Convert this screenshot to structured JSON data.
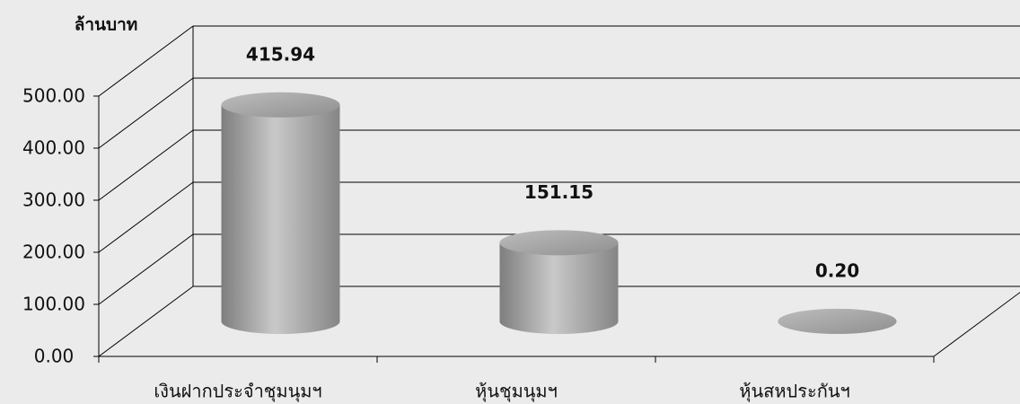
{
  "chart_data": {
    "type": "cylinder",
    "y_label": "ล้านบาท",
    "categories": [
      "เงินฝากประจำชุมนุมฯ",
      "หุ้นชุมนุมฯ",
      "หุ้นสหประกันฯ"
    ],
    "values": [
      415.94,
      151.15,
      0.2
    ],
    "value_labels": [
      "415.94",
      "151.15",
      "0.20"
    ],
    "color": "#a6a6a6",
    "ylim": [
      0,
      500
    ],
    "yticks": [
      {
        "value": 0,
        "label": "0.00"
      },
      {
        "value": 100,
        "label": "100.00"
      },
      {
        "value": 200,
        "label": "200.00"
      },
      {
        "value": 300,
        "label": "300.00"
      },
      {
        "value": 400,
        "label": "400.00"
      },
      {
        "value": 500,
        "label": "500.00"
      }
    ],
    "grid": true
  }
}
